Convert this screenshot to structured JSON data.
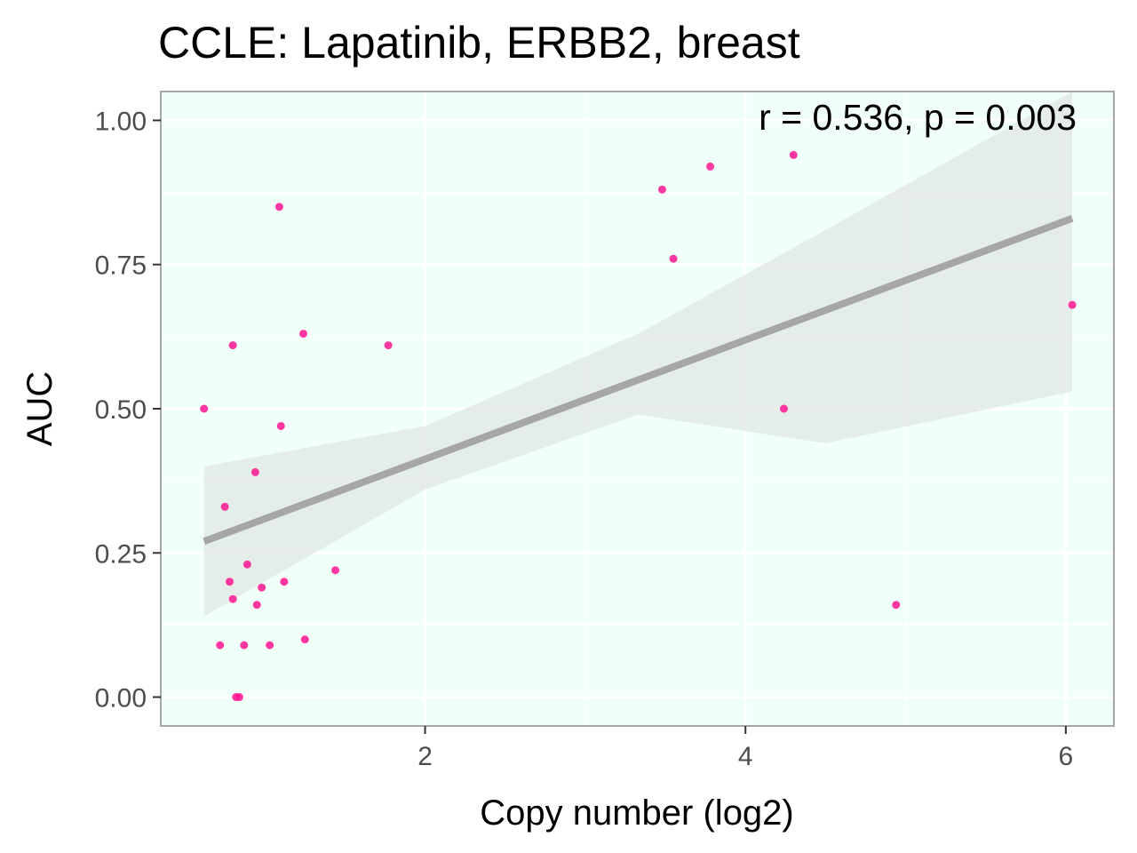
{
  "chart_data": {
    "type": "scatter",
    "title": "CCLE: Lapatinib, ERBB2, breast",
    "xlabel": "Copy number (log2)",
    "ylabel": "AUC",
    "annotation": "r = 0.536, p = 0.003",
    "xlim": [
      0.35,
      6.3
    ],
    "ylim": [
      -0.05,
      1.05
    ],
    "x_ticks": [
      2,
      4,
      6
    ],
    "x_tick_labels": [
      "2",
      "4",
      "6"
    ],
    "y_ticks": [
      0,
      0.25,
      0.5,
      0.75,
      1.0
    ],
    "y_tick_labels": [
      "0.00",
      "0.25",
      "0.50",
      "0.75",
      "1.00"
    ],
    "grid": true,
    "colors": {
      "panel_background": "#f0fff8",
      "grid": "#ffffff",
      "panel_border": "#a6a6a6",
      "points": "#ff1493",
      "fit_line": "#a6a6a6",
      "confidence_band": "#e2e8e4"
    },
    "points": [
      {
        "x": 0.62,
        "y": 0.5
      },
      {
        "x": 0.72,
        "y": 0.09
      },
      {
        "x": 0.75,
        "y": 0.33
      },
      {
        "x": 0.78,
        "y": 0.2
      },
      {
        "x": 0.8,
        "y": 0.17
      },
      {
        "x": 0.8,
        "y": 0.61
      },
      {
        "x": 0.82,
        "y": 0.0
      },
      {
        "x": 0.84,
        "y": 0.0
      },
      {
        "x": 0.87,
        "y": 0.09
      },
      {
        "x": 0.89,
        "y": 0.23
      },
      {
        "x": 0.94,
        "y": 0.39
      },
      {
        "x": 0.95,
        "y": 0.16
      },
      {
        "x": 0.98,
        "y": 0.19
      },
      {
        "x": 1.03,
        "y": 0.09
      },
      {
        "x": 1.09,
        "y": 0.85
      },
      {
        "x": 1.1,
        "y": 0.47
      },
      {
        "x": 1.12,
        "y": 0.2
      },
      {
        "x": 1.24,
        "y": 0.63
      },
      {
        "x": 1.25,
        "y": 0.1
      },
      {
        "x": 1.44,
        "y": 0.22
      },
      {
        "x": 1.77,
        "y": 0.61
      },
      {
        "x": 3.48,
        "y": 0.88
      },
      {
        "x": 3.55,
        "y": 0.76
      },
      {
        "x": 3.78,
        "y": 0.92
      },
      {
        "x": 4.24,
        "y": 0.5
      },
      {
        "x": 4.3,
        "y": 0.94
      },
      {
        "x": 4.94,
        "y": 0.16
      },
      {
        "x": 6.04,
        "y": 0.68
      }
    ],
    "fit_line": {
      "x": [
        0.62,
        6.04
      ],
      "y": [
        0.27,
        0.83
      ]
    },
    "confidence_band": {
      "x": [
        0.62,
        2.0,
        3.33,
        4.5,
        6.04
      ],
      "upper": [
        0.4,
        0.47,
        0.63,
        0.81,
        1.13
      ],
      "lower": [
        0.14,
        0.36,
        0.49,
        0.44,
        0.53
      ]
    }
  }
}
